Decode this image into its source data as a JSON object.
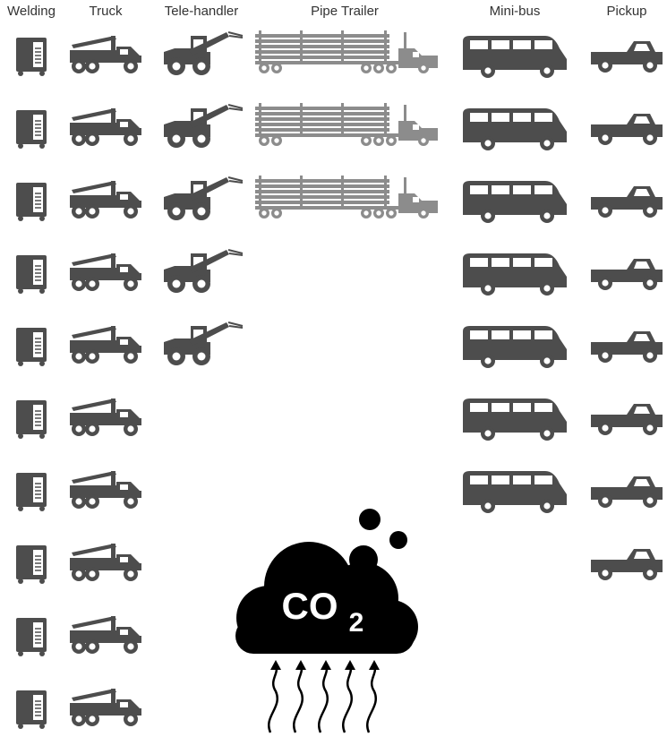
{
  "chart_data": {
    "type": "pictograph",
    "categories": [
      "Welding",
      "Truck",
      "Tele-handler",
      "Pipe Trailer",
      "Mini-bus",
      "Pickup"
    ],
    "values": [
      10,
      10,
      5,
      3,
      7,
      8
    ],
    "color": "#4d4d4d",
    "colors": [
      "#4d4d4d",
      "#4d4d4d",
      "#4d4d4d",
      "#8c8c8c",
      "#4d4d4d",
      "#4d4d4d"
    ],
    "annotation": {
      "text": "CO",
      "subscript": "2"
    }
  }
}
